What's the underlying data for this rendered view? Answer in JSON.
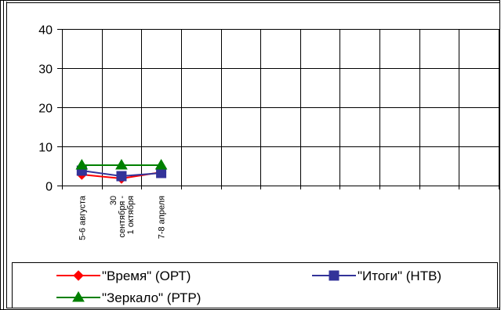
{
  "chart_data": {
    "type": "line",
    "categories": [
      "5-6 августа",
      "30 сентября - 1 октября",
      "7-8 апреля"
    ],
    "category_lines": [
      [
        "5-6 августа"
      ],
      [
        "30",
        "сентября -",
        "1 октября"
      ],
      [
        "7-8 апреля"
      ]
    ],
    "category_slots": 11,
    "ylim": [
      0,
      40
    ],
    "yticks": [
      0,
      10,
      20,
      30,
      40
    ],
    "grid": true,
    "legend_position": "bottom",
    "series": [
      {
        "name": "\"Время\" (ОРТ)",
        "values": [
          2.8,
          1.8,
          3.4
        ],
        "color": "#ff0000",
        "marker": "diamond"
      },
      {
        "name": "\"Итоги\" (НТВ)",
        "values": [
          3.8,
          2.4,
          3.2
        ],
        "color": "#333399",
        "marker": "square"
      },
      {
        "name": "\"Зеркало\" (РТР)",
        "values": [
          5.2,
          5.2,
          5.2
        ],
        "color": "#008000",
        "marker": "triangle"
      }
    ]
  }
}
